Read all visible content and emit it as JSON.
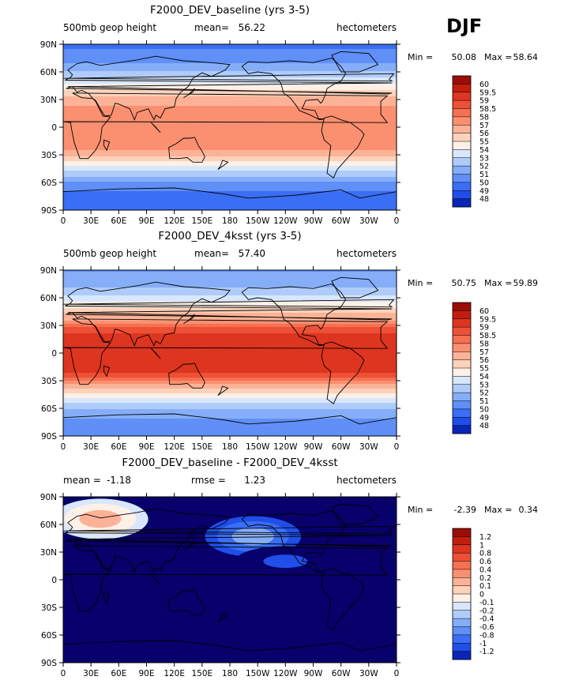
{
  "season": "DJF",
  "colors": {
    "full": [
      "#08006b",
      "#0a25b8",
      "#1f4fe8",
      "#3a6ef5",
      "#5f8ff7",
      "#86aef8",
      "#afcbfa",
      "#d8e7fc",
      "#fdf0e6",
      "#fcd2bb",
      "#fcb296",
      "#fa9070",
      "#f67052",
      "#ee5035",
      "#dd3520",
      "#c21e0e",
      "#9b0d05"
    ],
    "diff": [
      "#08006b",
      "#0a25b8",
      "#1f4fe8",
      "#3a6ef5",
      "#5f8ff7",
      "#86aef8",
      "#afcbfa",
      "#d8e7fc",
      "#fdf0e6",
      "#fcd2bb",
      "#fcb296",
      "#fa9070",
      "#f67052",
      "#ee5035",
      "#dd3520",
      "#c21e0e",
      "#9b0d05"
    ],
    "coast": "#000000"
  },
  "chart_data": [
    {
      "type": "heatmap",
      "title": "F2000_DEV_baseline (yrs 3-5)",
      "left_label": "500mb geop height",
      "center_label": "mean=",
      "center_value": "56.22",
      "right_label": "hectometers",
      "min_label": "Min =",
      "min_value": "50.08",
      "max_label": "Max =",
      "max_value": "58.64",
      "lat_ticks": [
        "90N",
        "60N",
        "30N",
        "0",
        "30S",
        "60S",
        "90S"
      ],
      "lon_ticks": [
        "0",
        "30E",
        "60E",
        "90E",
        "120E",
        "150E",
        "180",
        "150W",
        "120W",
        "90W",
        "60W",
        "30W",
        "0"
      ],
      "colorbar_levels": [
        "60",
        "59.5",
        "59",
        "58.5",
        "58",
        "57",
        "56",
        "55",
        "54",
        "53",
        "52",
        "51",
        "50",
        "49",
        "48"
      ],
      "zonal_mean_profile": {
        "lat": [
          -90,
          -75,
          -60,
          -45,
          -30,
          -20,
          0,
          20,
          30,
          45,
          60,
          75,
          90
        ],
        "value": [
          50.2,
          50.6,
          51.8,
          54.5,
          57.4,
          58.4,
          58.2,
          58.2,
          57.4,
          55.4,
          53.0,
          51.3,
          50.8
        ]
      }
    },
    {
      "type": "heatmap",
      "title": "F2000_DEV_4ksst (yrs 3-5)",
      "left_label": "500mb geop height",
      "center_label": "mean=",
      "center_value": "57.40",
      "right_label": "hectometers",
      "min_label": "Min =",
      "min_value": "50.75",
      "max_label": "Max =",
      "max_value": "59.89",
      "lat_ticks": [
        "90N",
        "60N",
        "30N",
        "0",
        "30S",
        "60S",
        "90S"
      ],
      "lon_ticks": [
        "0",
        "30E",
        "60E",
        "90E",
        "120E",
        "150E",
        "180",
        "150W",
        "120W",
        "90W",
        "60W",
        "30W",
        "0"
      ],
      "colorbar_levels": [
        "60",
        "59.5",
        "59",
        "58.5",
        "58",
        "57",
        "56",
        "55",
        "54",
        "53",
        "52",
        "51",
        "50",
        "49",
        "48"
      ],
      "zonal_mean_profile": {
        "lat": [
          -90,
          -75,
          -60,
          -45,
          -30,
          -20,
          0,
          20,
          30,
          45,
          60,
          75,
          90
        ],
        "value": [
          51.2,
          51.6,
          53.0,
          55.8,
          58.6,
          59.6,
          59.6,
          59.6,
          58.8,
          56.7,
          54.2,
          52.5,
          51.9
        ]
      }
    },
    {
      "type": "heatmap",
      "title": "F2000_DEV_baseline - F2000_DEV_4ksst",
      "left_label": "mean =",
      "left_value": "-1.18",
      "center_label": "rmse =",
      "center_value": "1.23",
      "right_label": "hectometers",
      "min_label": "Min =",
      "min_value": "-2.39",
      "max_label": "Max =",
      "max_value": "0.34",
      "lat_ticks": [
        "90N",
        "60N",
        "30N",
        "0",
        "30S",
        "60S",
        "90S"
      ],
      "lon_ticks": [
        "0",
        "30E",
        "60E",
        "90E",
        "120E",
        "150E",
        "180",
        "150W",
        "120W",
        "90W",
        "60W",
        "30W",
        "0"
      ],
      "colorbar_levels": [
        "1.2",
        "1",
        "0.8",
        "0.6",
        "0.4",
        "0.2",
        "0.1",
        "0",
        "-0.1",
        "-0.2",
        "-0.4",
        "-0.6",
        "-0.8",
        "-1",
        "-1.2"
      ],
      "background_value": -1.4,
      "features": [
        {
          "lon": 40,
          "lat": 66,
          "value": 0.3
        },
        {
          "lon": 205,
          "lat": 47,
          "value": -0.3
        },
        {
          "lon": 240,
          "lat": 20,
          "value": -1.0
        }
      ]
    }
  ]
}
